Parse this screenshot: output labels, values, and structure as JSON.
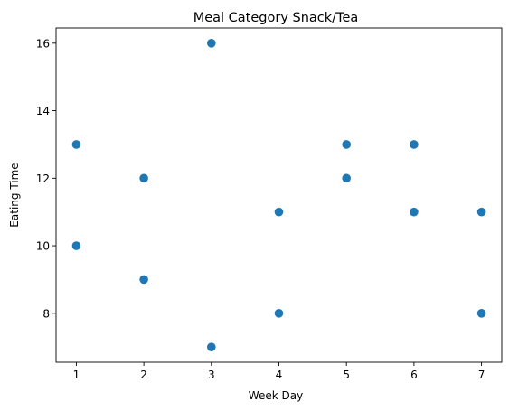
{
  "chart_data": {
    "type": "scatter",
    "title": "Meal Category Snack/Tea",
    "xlabel": "Week Day",
    "ylabel": "Eating Time",
    "xlim": [
      0.7,
      7.3
    ],
    "ylim": [
      6.55,
      16.45
    ],
    "x_ticks": [
      1,
      2,
      3,
      4,
      5,
      6,
      7
    ],
    "y_ticks": [
      8,
      10,
      12,
      14,
      16
    ],
    "grid": false,
    "legend": "none",
    "marker_color": "#1f77b4",
    "points": [
      {
        "x": 1,
        "y": 13
      },
      {
        "x": 1,
        "y": 10
      },
      {
        "x": 2,
        "y": 12
      },
      {
        "x": 2,
        "y": 9
      },
      {
        "x": 3,
        "y": 16
      },
      {
        "x": 3,
        "y": 7
      },
      {
        "x": 4,
        "y": 11
      },
      {
        "x": 4,
        "y": 8
      },
      {
        "x": 5,
        "y": 13
      },
      {
        "x": 5,
        "y": 12
      },
      {
        "x": 6,
        "y": 13
      },
      {
        "x": 6,
        "y": 11
      },
      {
        "x": 7,
        "y": 11
      },
      {
        "x": 7,
        "y": 8
      }
    ]
  }
}
